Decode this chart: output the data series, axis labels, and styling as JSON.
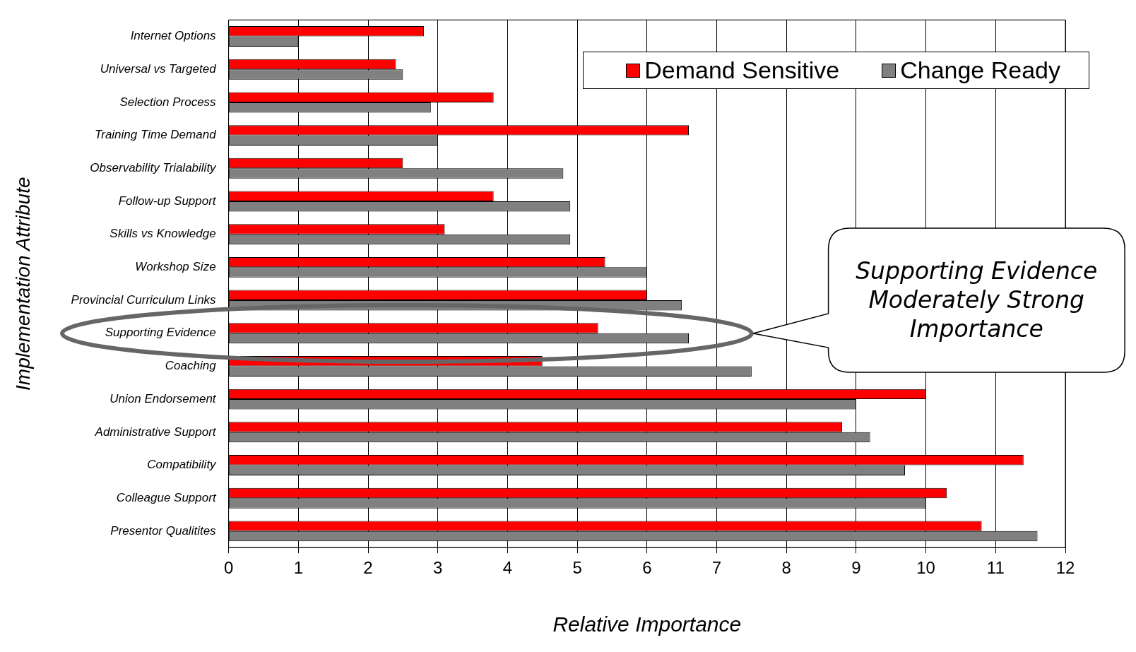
{
  "chart_data": {
    "type": "bar",
    "orientation": "horizontal",
    "xlabel": "Relative Importance",
    "ylabel": "Implementation Attribute",
    "categories": [
      "Internet Options",
      "Universal vs Targeted",
      "Selection Process",
      "Training Time Demand",
      "Observability Trialability",
      "Follow-up Support",
      "Skills vs Knowledge",
      "Workshop Size",
      "Provincial Curriculum Links",
      "Supporting Evidence",
      "Coaching",
      "Union Endorsement",
      "Administrative Support",
      "Compatibility",
      "Colleague Support",
      "Presentor Qualitites"
    ],
    "series": [
      {
        "name": "Demand Sensitive",
        "color": "#ff0000",
        "values": [
          2.8,
          2.4,
          3.8,
          6.6,
          2.5,
          3.8,
          3.1,
          5.4,
          6.0,
          5.3,
          4.5,
          10.0,
          8.8,
          11.4,
          10.3,
          10.8
        ]
      },
      {
        "name": "Change Ready",
        "color": "#808080",
        "values": [
          1.0,
          2.5,
          2.9,
          3.0,
          4.8,
          4.9,
          4.9,
          6.0,
          6.5,
          6.6,
          7.5,
          9.0,
          9.2,
          9.7,
          10.0,
          11.6
        ]
      }
    ],
    "xlim": [
      0,
      12
    ],
    "xticks": [
      0,
      1,
      2,
      3,
      4,
      5,
      6,
      7,
      8,
      9,
      10,
      11,
      12
    ],
    "grid": "x",
    "legend": "top right",
    "annotations": [
      "Supporting Evidence Moderately Strong Importance"
    ]
  }
}
